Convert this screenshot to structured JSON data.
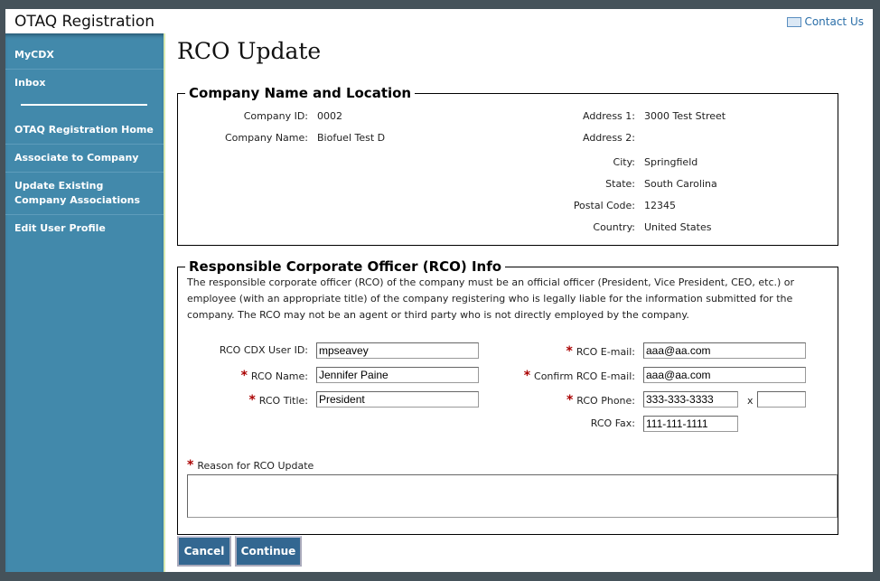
{
  "app": {
    "title": "OTAQ Registration",
    "contact": "Contact Us"
  },
  "sidebar": {
    "items": [
      {
        "label": "MyCDX"
      },
      {
        "label": "Inbox"
      },
      {
        "label": "OTAQ Registration Home"
      },
      {
        "label": "Associate to Company"
      },
      {
        "label": "Update Existing Company Associations"
      },
      {
        "label": "Edit User Profile"
      }
    ]
  },
  "page": {
    "title": "RCO Update"
  },
  "company": {
    "legend": "Company Name and Location",
    "id_label": "Company ID:",
    "id": "0002",
    "name_label": "Company Name:",
    "name": "Biofuel Test D",
    "addr1_label": "Address 1:",
    "addr1": "3000 Test Street",
    "addr2_label": "Address 2:",
    "addr2": "",
    "city_label": "City:",
    "city": "Springfield",
    "state_label": "State:",
    "state": "South Carolina",
    "postal_label": "Postal Code:",
    "postal": "12345",
    "country_label": "Country:",
    "country": "United States"
  },
  "rco": {
    "legend": "Responsible Corporate Officer (RCO) Info",
    "description": "The responsible corporate officer (RCO) of the company must be an official officer (President, Vice President, CEO, etc.) or employee (with an appropriate title) of the company registering who is legally liable for the information submitted for the company. The RCO may not be an agent or third party who is not directly employed by the company.",
    "userid_label": "RCO CDX User ID:",
    "userid": "mpseavey",
    "name_label": "RCO Name:",
    "name": "Jennifer Paine",
    "title_label": "RCO Title:",
    "title": "President",
    "email_label": "RCO E-mail:",
    "email": "aaa@aa.com",
    "confirm_label": "Confirm RCO E-mail:",
    "confirm": "aaa@aa.com",
    "phone_label": "RCO Phone:",
    "phone": "333-333-3333",
    "ext_label": "x",
    "ext": "",
    "fax_label": "RCO Fax:",
    "fax": "111-111-1111",
    "reason_label": "Reason for RCO Update",
    "reason": ""
  },
  "buttons": {
    "cancel": "Cancel",
    "continue": "Continue"
  },
  "colors": {
    "sidebar": "#4289ab",
    "button": "#336791",
    "required": "#aa0000"
  }
}
